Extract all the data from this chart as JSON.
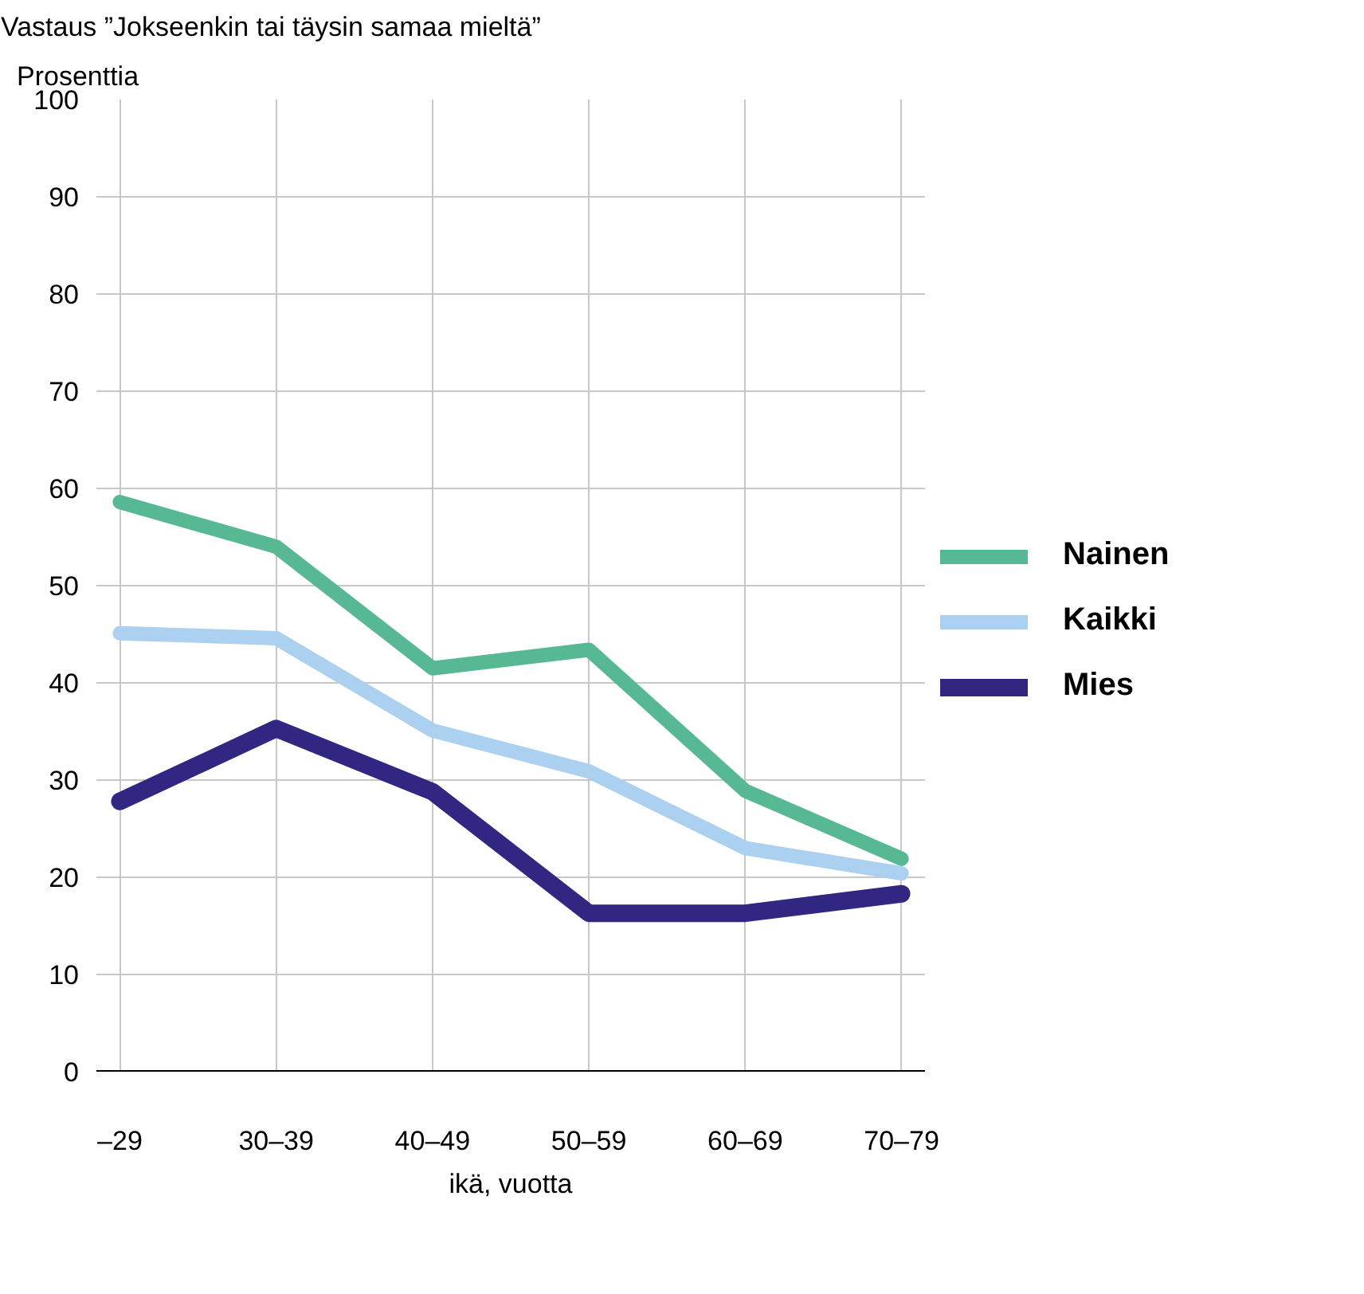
{
  "chart_data": {
    "type": "line",
    "title": "Vastaus ”Jokseenkin tai täysin samaa mieltä”",
    "ylabel": "Prosenttia",
    "xlabel": "ikä, vuotta",
    "categories": [
      "–29",
      "30–39",
      "40–49",
      "50–59",
      "60–69",
      "70–79"
    ],
    "series": [
      {
        "name": "Nainen",
        "color": "#57b894",
        "values": [
          58.6,
          54.0,
          41.5,
          43.4,
          28.9,
          21.9
        ]
      },
      {
        "name": "Kaikki",
        "color": "#acd0f0",
        "values": [
          45.1,
          44.6,
          35.1,
          30.9,
          23.0,
          20.4
        ]
      },
      {
        "name": "Mies",
        "color": "#312783",
        "values": [
          27.8,
          35.3,
          28.8,
          16.3,
          16.3,
          18.3
        ]
      }
    ],
    "ylim": [
      0,
      100
    ],
    "yticks": [
      0,
      10,
      20,
      30,
      40,
      50,
      60,
      70,
      80,
      90,
      100
    ],
    "grid": true,
    "legend": "right",
    "marker": "none",
    "line_style": "solid"
  }
}
